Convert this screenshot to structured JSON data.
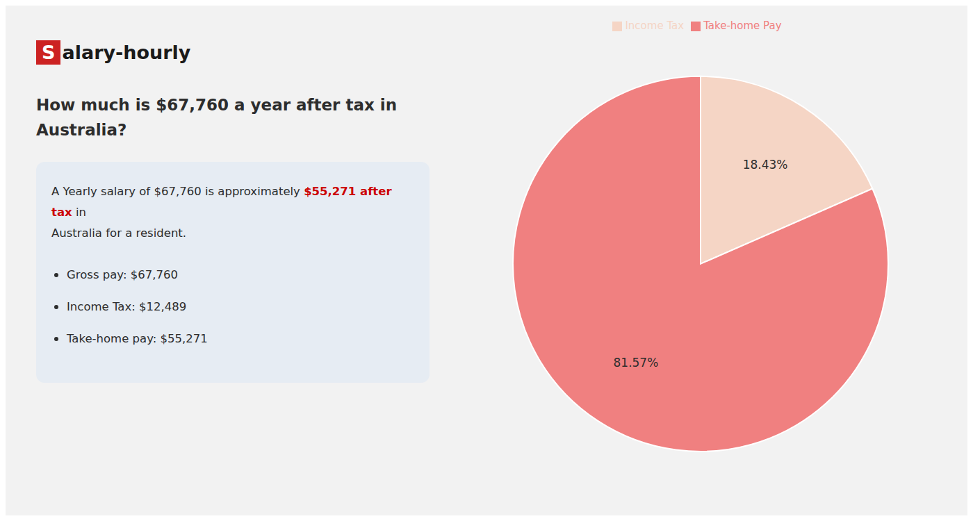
{
  "chart_data": {
    "type": "pie",
    "title": [
      "How much is $67,760 a year after tax in",
      "Australia?"
    ],
    "categories": [
      "Income Tax",
      "Take-home Pay"
    ],
    "values": [
      18.43,
      81.57
    ],
    "value_labels": [
      "18.43%",
      "81.57%"
    ],
    "colors": [
      "#f5d5c5",
      "#f08080"
    ],
    "data_labels": true,
    "legend": "top",
    "annotations": [
      [
        {
          "text": "S",
          "color": "#cc2222"
        },
        {
          "text": "alary-hourly"
        }
      ],
      [
        {
          "text": "A Yearly salary of $67,760 is approximately "
        },
        {
          "text": "$55,271 after tax",
          "color": "#cc0000"
        },
        {
          "text": " in"
        }
      ],
      [
        {
          "text": "Australia for a resident."
        }
      ],
      [
        {
          "text": "Gross pay: $67,760"
        }
      ],
      [
        {
          "text": "Income Tax: $12,489"
        }
      ],
      [
        {
          "text": "Take-home pay: $55,271"
        }
      ]
    ]
  }
}
